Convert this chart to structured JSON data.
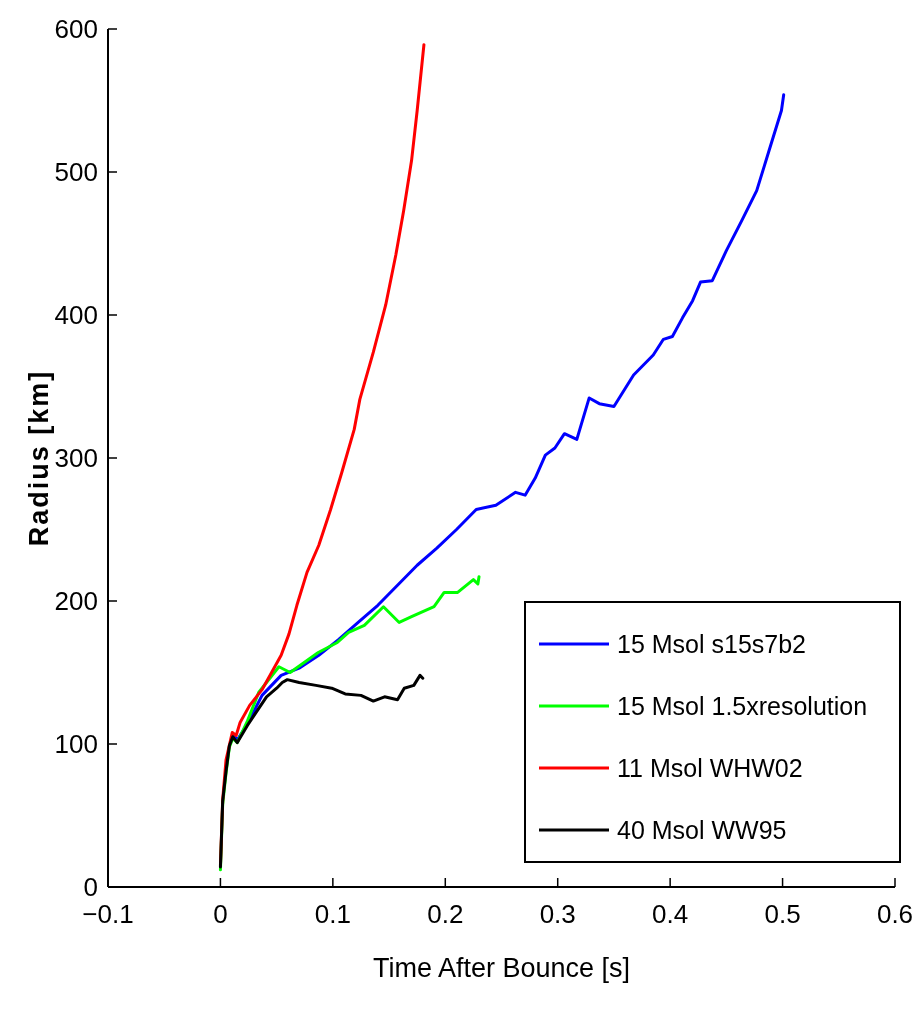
{
  "chart_data": {
    "type": "line",
    "xlabel": "Time After Bounce [s]",
    "ylabel": "Radius [km]",
    "xlim": [
      -0.1,
      0.6
    ],
    "ylim": [
      0,
      600
    ],
    "xticks": [
      {
        "value": -0.1,
        "label": "−0.1"
      },
      0,
      0.1,
      0.2,
      0.3,
      0.4,
      0.5,
      0.6
    ],
    "yticks": [
      0,
      100,
      200,
      300,
      400,
      500,
      600
    ],
    "grid": false,
    "legend": "bottom right",
    "line_style": "solid",
    "marker": "none",
    "series": [
      {
        "name": "15 Msol s15s7b2",
        "color": "#0000ff",
        "x": [
          0.011,
          0.015,
          0.024,
          0.037,
          0.054,
          0.07,
          0.0875,
          0.105,
          0.1225,
          0.14,
          0.1575,
          0.175,
          0.1925,
          0.21,
          0.2275,
          0.245,
          0.2625,
          0.271,
          0.28,
          0.289,
          0.2975,
          0.306,
          0.317,
          0.328,
          0.337,
          0.35,
          0.3675,
          0.385,
          0.394,
          0.402,
          0.411,
          0.42,
          0.427,
          0.4375,
          0.45,
          0.4637,
          0.477,
          0.488,
          0.499,
          0.501
        ],
        "values": [
          106,
          103,
          114,
          134,
          148,
          153,
          162,
          173,
          185,
          197,
          211,
          225,
          237,
          250,
          264,
          267,
          276,
          274,
          286,
          302,
          307,
          317,
          313,
          342,
          338,
          336,
          358,
          372,
          383,
          385,
          398,
          410,
          423,
          424,
          445,
          466,
          487,
          515,
          543,
          554
        ]
      },
      {
        "name": "15 Msol 1.5xresolution",
        "color": "#00ff00",
        "x": [
          0,
          0.002,
          0.005,
          0.008,
          0.011,
          0.015,
          0.024,
          0.034,
          0.052,
          0.062,
          0.087,
          0.104,
          0.114,
          0.128,
          0.145,
          0.159,
          0.17,
          0.19,
          0.199,
          0.211,
          0.225,
          0.229,
          0.23
        ],
        "values": [
          12,
          58,
          80,
          98,
          104,
          101,
          116,
          136,
          154,
          150,
          164,
          171,
          178,
          183,
          196,
          185,
          189,
          196,
          206,
          206,
          215,
          212,
          217
        ]
      },
      {
        "name": "11 Msol WHW02",
        "color": "#ff0000",
        "x": [
          0,
          0.002,
          0.005,
          0.0105,
          0.014,
          0.0175,
          0.026,
          0.037,
          0.0455,
          0.054,
          0.061,
          0.068,
          0.077,
          0.0875,
          0.098,
          0.108,
          0.119,
          0.124,
          0.136,
          0.147,
          0.156,
          0.163,
          0.17,
          0.175,
          0.181
        ],
        "values": [
          15,
          61,
          89,
          108,
          106,
          115,
          127,
          138,
          150,
          162,
          177,
          197,
          220,
          239,
          264,
          290,
          320,
          341,
          374,
          407,
          442,
          473,
          508,
          543,
          589
        ]
      },
      {
        "name": "40 Msol WW95",
        "color": "#000000",
        "x": [
          0,
          0.002,
          0.005,
          0.008,
          0.011,
          0.015,
          0.024,
          0.041,
          0.05,
          0.055,
          0.0595,
          0.07,
          0.085,
          0.099,
          0.111,
          0.125,
          0.136,
          0.146,
          0.1575,
          0.1635,
          0.172,
          0.1775,
          0.18
        ],
        "values": [
          14,
          60,
          81,
          99,
          105,
          101,
          113,
          133,
          139,
          143,
          145,
          143,
          141,
          139,
          135,
          134,
          130,
          133,
          131,
          139,
          141,
          148,
          146
        ]
      }
    ]
  }
}
